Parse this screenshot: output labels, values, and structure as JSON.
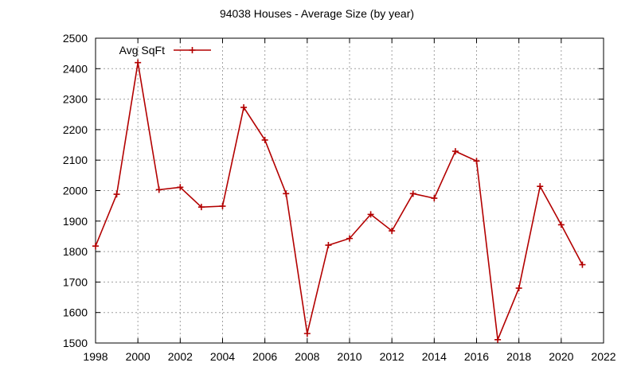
{
  "chart_data": {
    "type": "line",
    "title": "94038 Houses - Average Size (by year)",
    "xlabel": "",
    "ylabel": "",
    "xlim": [
      1998,
      2022
    ],
    "ylim": [
      1500,
      2500
    ],
    "xticks": [
      1998,
      2000,
      2002,
      2004,
      2006,
      2008,
      2010,
      2012,
      2014,
      2016,
      2018,
      2020,
      2022
    ],
    "yticks": [
      1500,
      1600,
      1700,
      1800,
      1900,
      2000,
      2100,
      2200,
      2300,
      2400,
      2500
    ],
    "grid": true,
    "legend_position": "top-left",
    "series": [
      {
        "name": "Avg SqFt",
        "color": "#b30000",
        "marker": "plus",
        "x": [
          1998,
          1999,
          2000,
          2001,
          2002,
          2003,
          2004,
          2005,
          2006,
          2007,
          2008,
          2009,
          2010,
          2011,
          2012,
          2013,
          2014,
          2015,
          2016,
          2017,
          2018,
          2019,
          2020,
          2021
        ],
        "y": [
          1818,
          1988,
          2420,
          2003,
          2011,
          1946,
          1949,
          2273,
          2166,
          1990,
          1531,
          1821,
          1843,
          1922,
          1868,
          1990,
          1975,
          2129,
          2097,
          1511,
          1680,
          2014,
          1888,
          1757
        ]
      }
    ]
  }
}
